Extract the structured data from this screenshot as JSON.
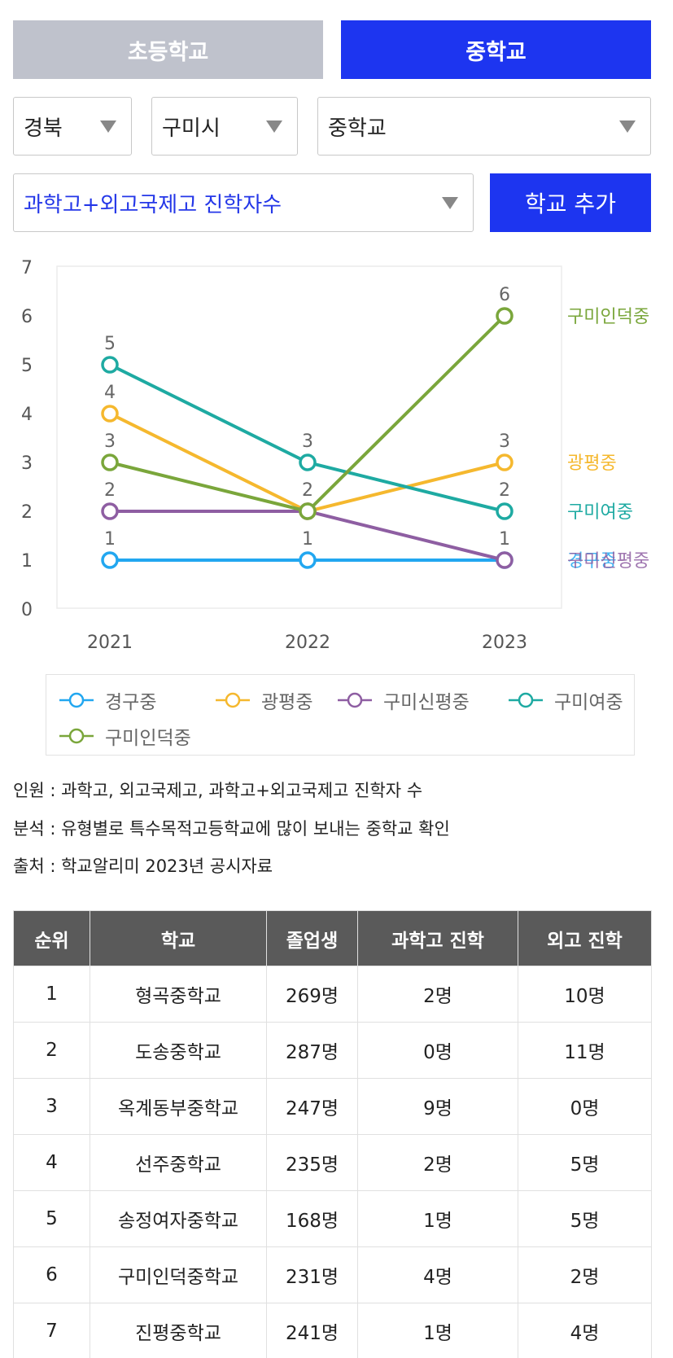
{
  "tabs": {
    "elementary": "초등학교",
    "middle": "중학교"
  },
  "filters": {
    "region": "경북",
    "city": "구미시",
    "school_type": "중학교",
    "metric": "과학고+외고국제고 진학자수",
    "add_button": "학교 추가"
  },
  "colors": {
    "accent": "#1d35f0",
    "inactive_tab": "#bfc2cc",
    "경구중": "#22a7f0",
    "광평중": "#f5b82e",
    "구미신평중": "#8e5ea2",
    "구미여중": "#1eaaa2",
    "구미인덕중": "#7aa63b"
  },
  "chart_data": {
    "type": "line",
    "x": [
      "2021",
      "2022",
      "2023"
    ],
    "ylim": [
      0,
      7
    ],
    "yticks": [
      "0",
      "1",
      "2",
      "3",
      "4",
      "5",
      "6",
      "7"
    ],
    "grid": false,
    "legend_position": "bottom",
    "series": [
      {
        "name": "경구중",
        "values": [
          1,
          1,
          1
        ],
        "label_at_end": false
      },
      {
        "name": "광평중",
        "values": [
          4,
          2,
          3
        ],
        "label_at_end": true
      },
      {
        "name": "구미신평중",
        "values": [
          2,
          2,
          1
        ],
        "label_at_end": false
      },
      {
        "name": "구미여중",
        "values": [
          5,
          3,
          2
        ],
        "label_at_end": true
      },
      {
        "name": "구미인덕중",
        "values": [
          3,
          2,
          6
        ],
        "label_at_end": true
      }
    ],
    "point_labels": [
      {
        "x": "2021",
        "text": "5"
      },
      {
        "x": "2021",
        "text": "4"
      },
      {
        "x": "2021",
        "text": "3"
      },
      {
        "x": "2021",
        "text": "2"
      },
      {
        "x": "2021",
        "text": "1"
      },
      {
        "x": "2022",
        "text": "3"
      },
      {
        "x": "2022",
        "text": "2"
      },
      {
        "x": "2022",
        "text": "1"
      },
      {
        "x": "2023",
        "text": "6"
      },
      {
        "x": "2023",
        "text": "3"
      },
      {
        "x": "2023",
        "text": "2"
      },
      {
        "x": "2023",
        "text": "1"
      }
    ],
    "overlapping_end_label": "경구중/구미신평중"
  },
  "notes": {
    "line1": "인원 : 과학고, 외고국제고, 과학고+외고국제고 진학자 수",
    "line2": "분석 : 유형별로 특수목적고등학교에 많이 보내는 중학교 확인",
    "line3": "출처 : 학교알리미 2023년 공시자료"
  },
  "table": {
    "headers": [
      "순위",
      "학교",
      "졸업생",
      "과학고 진학",
      "외고 진학"
    ],
    "rows": [
      [
        "1",
        "형곡중학교",
        "269명",
        "2명",
        "10명"
      ],
      [
        "2",
        "도송중학교",
        "287명",
        "0명",
        "11명"
      ],
      [
        "3",
        "옥계동부중학교",
        "247명",
        "9명",
        "0명"
      ],
      [
        "4",
        "선주중학교",
        "235명",
        "2명",
        "5명"
      ],
      [
        "5",
        "송정여자중학교",
        "168명",
        "1명",
        "5명"
      ],
      [
        "6",
        "구미인덕중학교",
        "231명",
        "4명",
        "2명"
      ],
      [
        "7",
        "진평중학교",
        "241명",
        "1명",
        "4명"
      ]
    ]
  }
}
